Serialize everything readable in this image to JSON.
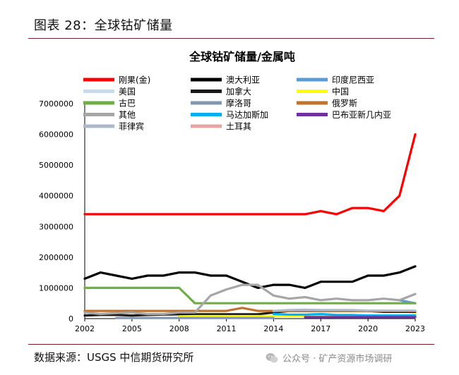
{
  "figure_title": "图表 28：全球钴矿储量",
  "source": "数据来源：USGS 中信期货研究所",
  "watermark": {
    "icon": "wechat-icon",
    "text": "公众号 · 矿产资源市场调研"
  },
  "chart_data": {
    "type": "line",
    "title": "全球钴矿储量/金属吨",
    "x": [
      2002,
      2003,
      2004,
      2005,
      2006,
      2007,
      2008,
      2009,
      2010,
      2011,
      2012,
      2013,
      2014,
      2015,
      2016,
      2017,
      2018,
      2019,
      2020,
      2021,
      2022,
      2023
    ],
    "xticks": [
      2002,
      2005,
      2008,
      2011,
      2014,
      2017,
      2020,
      2023
    ],
    "ylim": [
      0,
      7000000
    ],
    "yticks": [
      0,
      1000000,
      2000000,
      3000000,
      4000000,
      5000000,
      6000000,
      7000000
    ],
    "ytick_labels": [
      "0",
      "1000000",
      "2000000",
      "3000000",
      "4000000",
      "5000000",
      "6000000",
      "7000000"
    ],
    "legend_position": "top",
    "series": [
      {
        "name": "刚果(金)",
        "color": "#ff0000",
        "width": 3.2,
        "values": [
          3400000,
          3400000,
          3400000,
          3400000,
          3400000,
          3400000,
          3400000,
          3400000,
          3400000,
          3400000,
          3400000,
          3400000,
          3400000,
          3400000,
          3400000,
          3500000,
          3400000,
          3600000,
          3600000,
          3500000,
          4000000,
          6000000
        ]
      },
      {
        "name": "澳大利亚",
        "color": "#000000",
        "width": 3.2,
        "values": [
          1300000,
          1500000,
          1400000,
          1300000,
          1400000,
          1400000,
          1500000,
          1500000,
          1400000,
          1400000,
          1200000,
          1000000,
          1100000,
          1100000,
          1000000,
          1200000,
          1200000,
          1200000,
          1400000,
          1400000,
          1500000,
          1700000
        ]
      },
      {
        "name": "印度尼西亚",
        "color": "#5b9bd5",
        "width": 3.2,
        "values": [
          null,
          null,
          null,
          null,
          null,
          null,
          null,
          null,
          null,
          null,
          null,
          null,
          null,
          null,
          null,
          null,
          null,
          null,
          null,
          null,
          600000,
          500000
        ]
      },
      {
        "name": "美国",
        "color": "#c9d9ee",
        "width": 3.2,
        "values": [
          null,
          null,
          null,
          null,
          null,
          null,
          null,
          null,
          null,
          null,
          null,
          null,
          null,
          null,
          null,
          null,
          null,
          null,
          null,
          null,
          null,
          null
        ]
      },
      {
        "name": "加拿大",
        "color": "#1a1a1a",
        "width": 3.2,
        "values": [
          100000,
          120000,
          120000,
          100000,
          120000,
          130000,
          140000,
          140000,
          140000,
          140000,
          140000,
          140000,
          200000,
          250000,
          250000,
          250000,
          250000,
          250000,
          250000,
          220000,
          220000,
          220000
        ]
      },
      {
        "name": "中国",
        "color": "#ffff00",
        "width": 3.2,
        "values": [
          null,
          null,
          null,
          null,
          null,
          null,
          72000,
          80000,
          80000,
          80000,
          80000,
          80000,
          80000,
          80000,
          80000,
          80000,
          80000,
          80000,
          80000,
          80000,
          80000,
          140000
        ]
      },
      {
        "name": "古巴",
        "color": "#70ad47",
        "width": 3.2,
        "values": [
          1000000,
          1000000,
          1000000,
          1000000,
          1000000,
          1000000,
          1000000,
          500000,
          500000,
          500000,
          500000,
          500000,
          500000,
          500000,
          500000,
          500000,
          500000,
          500000,
          500000,
          500000,
          500000,
          500000
        ]
      },
      {
        "name": "摩洛哥",
        "color": "#8497b0",
        "width": 3.2,
        "values": [
          null,
          null,
          20000,
          20000,
          20000,
          20000,
          20000,
          20000,
          20000,
          20000,
          20000,
          20000,
          20000,
          null,
          null,
          null,
          null,
          null,
          null,
          null,
          null,
          null
        ]
      },
      {
        "name": "俄罗斯",
        "color": "#c0732e",
        "width": 3.2,
        "values": [
          250000,
          250000,
          250000,
          250000,
          250000,
          250000,
          250000,
          250000,
          250000,
          250000,
          350000,
          250000,
          250000,
          250000,
          250000,
          250000,
          250000,
          250000,
          250000,
          250000,
          250000,
          250000
        ]
      },
      {
        "name": "其他",
        "color": "#a6a6a6",
        "width": 3.2,
        "values": [
          200000,
          150000,
          180000,
          200000,
          150000,
          150000,
          200000,
          200000,
          750000,
          950000,
          1100000,
          1100000,
          750000,
          650000,
          700000,
          600000,
          650000,
          600000,
          600000,
          650000,
          600000,
          800000
        ]
      },
      {
        "name": "马达加斯加",
        "color": "#00b0f0",
        "width": 3.2,
        "values": [
          null,
          null,
          null,
          null,
          null,
          null,
          null,
          null,
          null,
          null,
          null,
          null,
          150000,
          130000,
          130000,
          150000,
          120000,
          120000,
          100000,
          100000,
          100000,
          100000
        ]
      },
      {
        "name": "巴布亚新几内亚",
        "color": "#7030a0",
        "width": 3.2,
        "values": [
          null,
          null,
          null,
          null,
          null,
          null,
          null,
          null,
          null,
          null,
          null,
          null,
          null,
          null,
          50000,
          50000,
          50000,
          50000,
          50000,
          50000,
          50000,
          50000
        ]
      },
      {
        "name": "菲律宾",
        "color": "#adb9ca",
        "width": 3.2,
        "values": [
          null,
          null,
          null,
          null,
          null,
          null,
          null,
          null,
          null,
          null,
          null,
          null,
          250000,
          280000,
          290000,
          280000,
          280000,
          280000,
          260000,
          260000,
          260000,
          260000
        ]
      },
      {
        "name": "土耳其",
        "color": "#e6a5a5",
        "width": 3.2,
        "values": [
          null,
          null,
          null,
          null,
          null,
          null,
          null,
          null,
          null,
          null,
          null,
          null,
          null,
          null,
          null,
          null,
          null,
          null,
          null,
          null,
          null,
          50000
        ]
      }
    ]
  }
}
